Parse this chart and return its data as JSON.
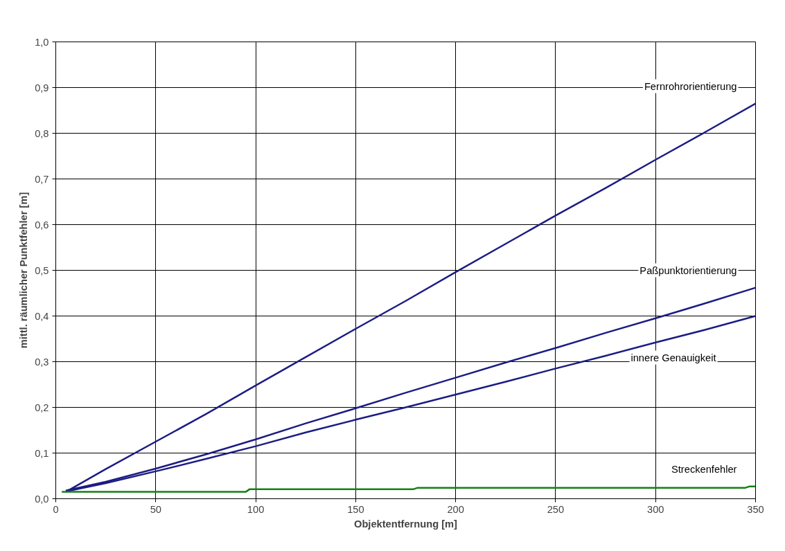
{
  "chart_data": {
    "type": "line",
    "xlabel": "Objektentfernung [m]",
    "ylabel": "mittl. räumlicher Punktfehler [m]",
    "xlim": [
      0,
      350
    ],
    "xticks": [
      0,
      50,
      100,
      150,
      200,
      250,
      300,
      350
    ],
    "ylim": [
      0,
      1
    ],
    "yticks": [
      {
        "value": 0,
        "label": "0,0"
      },
      {
        "value": 0.1,
        "label": "0,1"
      },
      {
        "value": 0.2,
        "label": "0,2"
      },
      {
        "value": 0.3,
        "label": "0,3"
      },
      {
        "value": 0.4,
        "label": "0,4"
      },
      {
        "value": 0.5,
        "label": "0,5"
      },
      {
        "value": 0.6,
        "label": "0,6"
      },
      {
        "value": 0.7,
        "label": "0,7"
      },
      {
        "value": 0.8,
        "label": "0,8"
      },
      {
        "value": 0.9,
        "label": "0,9"
      },
      {
        "value": 1.0,
        "label": "1,0"
      }
    ],
    "grid": true,
    "series": [
      {
        "name": "Fernrohrorientierung",
        "color": "#1c1c84",
        "x": [
          5,
          25,
          50,
          75,
          100,
          125,
          150,
          175,
          200,
          225,
          250,
          275,
          300,
          325,
          350
        ],
        "values": [
          0.015,
          0.065,
          0.125,
          0.185,
          0.248,
          0.31,
          0.372,
          0.433,
          0.496,
          0.558,
          0.62,
          0.68,
          0.742,
          0.803,
          0.865
        ]
      },
      {
        "name": "Paßpunktorientierung",
        "color": "#1c1c84",
        "x": [
          5,
          25,
          50,
          75,
          100,
          125,
          150,
          175,
          200,
          225,
          250,
          275,
          300,
          325,
          350
        ],
        "values": [
          0.018,
          0.037,
          0.066,
          0.097,
          0.13,
          0.165,
          0.198,
          0.232,
          0.265,
          0.298,
          0.33,
          0.363,
          0.395,
          0.428,
          0.462
        ]
      },
      {
        "name": "innere Genauigkeit",
        "color": "#1c1c84",
        "x": [
          5,
          25,
          50,
          75,
          100,
          125,
          150,
          175,
          200,
          225,
          250,
          275,
          300,
          325,
          350
        ],
        "values": [
          0.016,
          0.034,
          0.06,
          0.087,
          0.115,
          0.145,
          0.173,
          0.2,
          0.228,
          0.256,
          0.285,
          0.313,
          0.342,
          0.37,
          0.4
        ]
      },
      {
        "name": "Streckenfehler",
        "color": "#138013",
        "x": [
          3,
          95,
          97,
          179,
          181,
          345,
          347,
          350
        ],
        "values": [
          0.015,
          0.015,
          0.021,
          0.021,
          0.024,
          0.024,
          0.027,
          0.027
        ]
      }
    ]
  }
}
